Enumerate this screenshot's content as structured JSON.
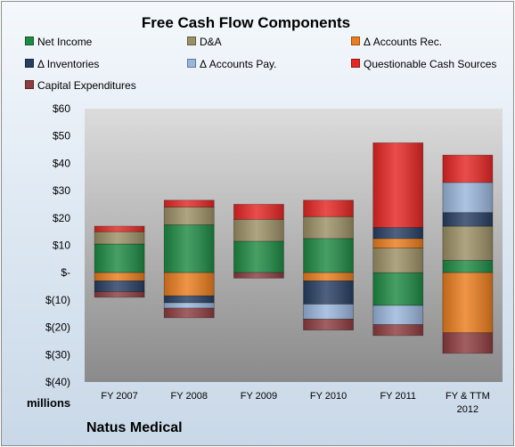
{
  "chart_data": {
    "type": "bar",
    "stacked": true,
    "title": "Free Cash Flow Components",
    "categories": [
      "FY 2007",
      "FY 2008",
      "FY 2009",
      "FY 2010",
      "FY 2011",
      "FY & TTM 2012"
    ],
    "ylabel": "millions",
    "ylim": [
      -40,
      60
    ],
    "yticks": [
      "$(40)",
      "$(30)",
      "$(20)",
      "$(10)",
      "$-",
      "$10",
      "$20",
      "$30",
      "$40",
      "$50",
      "$60"
    ],
    "legend_position": "top",
    "grid": false,
    "series": [
      {
        "name": "Net Income",
        "color": "#1e8a44",
        "values": [
          10.5,
          17.5,
          11.5,
          12.5,
          -12,
          4.5
        ]
      },
      {
        "name": "D&A",
        "color": "#9c9066",
        "values": [
          4.5,
          6.5,
          8,
          8,
          9,
          12.5
        ]
      },
      {
        "name": "Δ Accounts Rec.",
        "color": "#ea7d1e",
        "values": [
          -3,
          -8.5,
          0,
          -3,
          3.5,
          -22
        ]
      },
      {
        "name": "Δ Inventories",
        "color": "#273e62",
        "values": [
          -4,
          -2.5,
          0,
          -8.5,
          4,
          5
        ]
      },
      {
        "name": "Δ Accounts Pay.",
        "color": "#9ab6dc",
        "values": [
          0,
          -2,
          0,
          -5.5,
          -7,
          11
        ]
      },
      {
        "name": "Questionable Cash Sources",
        "color": "#e52623",
        "values": [
          2,
          2.5,
          5.5,
          6,
          31,
          10
        ]
      },
      {
        "name": "Capital Expenditures",
        "color": "#8e3c3f",
        "values": [
          -2,
          -3.5,
          -2,
          -4,
          -4,
          -7.5
        ]
      }
    ]
  },
  "footer": {
    "company": "Natus Medical"
  }
}
